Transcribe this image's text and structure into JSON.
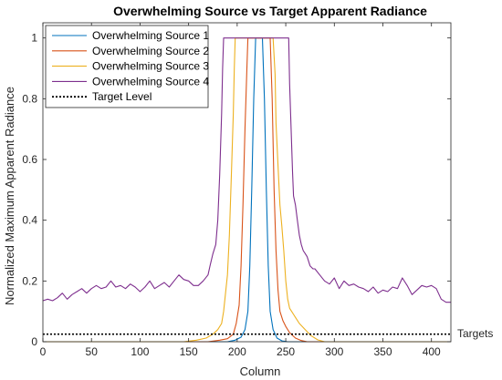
{
  "chart_data": {
    "type": "line",
    "title": "Overwhelming Source vs Target Apparent Radiance",
    "xlabel": "Column",
    "ylabel": "Normalized Maximum Apparent Radiance",
    "xlim": [
      0,
      420
    ],
    "ylim": [
      0,
      1.05
    ],
    "xticks": [
      0,
      50,
      100,
      150,
      200,
      250,
      300,
      350,
      400
    ],
    "yticks": [
      0,
      0.2,
      0.4,
      0.6,
      0.8,
      1
    ],
    "ytick_labels": [
      "0",
      "0.2",
      "0.4",
      "0.6",
      "0.8",
      "1"
    ],
    "grid": false,
    "legend_position": "top-left",
    "annotation": "Targets",
    "series": [
      {
        "name": "Overwhelming Source 1",
        "color": "#0072BD",
        "dash": "",
        "points": [
          [
            0,
            0
          ],
          [
            190,
            0
          ],
          [
            198,
            0.005
          ],
          [
            204,
            0.015
          ],
          [
            208,
            0.04
          ],
          [
            211,
            0.1
          ],
          [
            213,
            0.25
          ],
          [
            215,
            0.5
          ],
          [
            217,
            0.8
          ],
          [
            219,
            1
          ],
          [
            226,
            1
          ],
          [
            228,
            0.8
          ],
          [
            230,
            0.5
          ],
          [
            232,
            0.25
          ],
          [
            234,
            0.1
          ],
          [
            237,
            0.04
          ],
          [
            241,
            0.012
          ],
          [
            246,
            0.003
          ],
          [
            252,
            0
          ],
          [
            420,
            0
          ]
        ]
      },
      {
        "name": "Overwhelming Source 2",
        "color": "#D95319",
        "dash": "",
        "points": [
          [
            0,
            0
          ],
          [
            170,
            0
          ],
          [
            182,
            0.005
          ],
          [
            190,
            0.01
          ],
          [
            196,
            0.025
          ],
          [
            199,
            0.06
          ],
          [
            202,
            0.12
          ],
          [
            204,
            0.25
          ],
          [
            206,
            0.45
          ],
          [
            208,
            0.7
          ],
          [
            210,
            0.9
          ],
          [
            211,
            1
          ],
          [
            234,
            1
          ],
          [
            236,
            0.8
          ],
          [
            238,
            0.5
          ],
          [
            240,
            0.3
          ],
          [
            242,
            0.17
          ],
          [
            244,
            0.1
          ],
          [
            247,
            0.07
          ],
          [
            250,
            0.05
          ],
          [
            254,
            0.03
          ],
          [
            260,
            0.012
          ],
          [
            266,
            0.004
          ],
          [
            272,
            0
          ],
          [
            420,
            0
          ]
        ]
      },
      {
        "name": "Overwhelming Source 3",
        "color": "#EDB120",
        "dash": "",
        "points": [
          [
            0,
            0
          ],
          [
            145,
            0
          ],
          [
            158,
            0.005
          ],
          [
            168,
            0.012
          ],
          [
            175,
            0.025
          ],
          [
            180,
            0.04
          ],
          [
            184,
            0.06
          ],
          [
            186,
            0.1
          ],
          [
            188,
            0.16
          ],
          [
            190,
            0.22
          ],
          [
            192,
            0.35
          ],
          [
            194,
            0.55
          ],
          [
            196,
            0.75
          ],
          [
            197,
            0.9
          ],
          [
            198,
            1
          ],
          [
            237,
            1
          ],
          [
            239,
            0.88
          ],
          [
            240,
            0.72
          ],
          [
            242,
            0.58
          ],
          [
            244,
            0.45
          ],
          [
            246,
            0.38
          ],
          [
            248,
            0.3
          ],
          [
            250,
            0.2
          ],
          [
            252,
            0.14
          ],
          [
            254,
            0.11
          ],
          [
            256,
            0.1
          ],
          [
            258,
            0.09
          ],
          [
            260,
            0.08
          ],
          [
            264,
            0.06
          ],
          [
            270,
            0.04
          ],
          [
            276,
            0.02
          ],
          [
            283,
            0.006
          ],
          [
            290,
            0
          ],
          [
            420,
            0
          ]
        ]
      },
      {
        "name": "Overwhelming Source 4",
        "color": "#7E2F8E",
        "dash": "",
        "points": [
          [
            0,
            0.135
          ],
          [
            5,
            0.14
          ],
          [
            10,
            0.135
          ],
          [
            15,
            0.145
          ],
          [
            20,
            0.16
          ],
          [
            25,
            0.14
          ],
          [
            30,
            0.155
          ],
          [
            35,
            0.165
          ],
          [
            40,
            0.175
          ],
          [
            45,
            0.16
          ],
          [
            50,
            0.175
          ],
          [
            55,
            0.185
          ],
          [
            60,
            0.175
          ],
          [
            65,
            0.18
          ],
          [
            70,
            0.2
          ],
          [
            75,
            0.18
          ],
          [
            80,
            0.185
          ],
          [
            85,
            0.175
          ],
          [
            90,
            0.19
          ],
          [
            95,
            0.18
          ],
          [
            100,
            0.165
          ],
          [
            105,
            0.18
          ],
          [
            110,
            0.2
          ],
          [
            115,
            0.175
          ],
          [
            120,
            0.185
          ],
          [
            125,
            0.195
          ],
          [
            130,
            0.18
          ],
          [
            135,
            0.2
          ],
          [
            140,
            0.22
          ],
          [
            145,
            0.205
          ],
          [
            150,
            0.2
          ],
          [
            155,
            0.185
          ],
          [
            160,
            0.185
          ],
          [
            165,
            0.2
          ],
          [
            170,
            0.22
          ],
          [
            172,
            0.25
          ],
          [
            175,
            0.29
          ],
          [
            178,
            0.32
          ],
          [
            180,
            0.4
          ],
          [
            182,
            0.55
          ],
          [
            184,
            0.75
          ],
          [
            185,
            0.9
          ],
          [
            186,
            1
          ],
          [
            253,
            1
          ],
          [
            254,
            0.85
          ],
          [
            255,
            0.75
          ],
          [
            256,
            0.65
          ],
          [
            257,
            0.56
          ],
          [
            258,
            0.48
          ],
          [
            260,
            0.45
          ],
          [
            262,
            0.4
          ],
          [
            264,
            0.35
          ],
          [
            266,
            0.32
          ],
          [
            268,
            0.3
          ],
          [
            270,
            0.29
          ],
          [
            272,
            0.28
          ],
          [
            275,
            0.25
          ],
          [
            278,
            0.24
          ],
          [
            280,
            0.24
          ],
          [
            285,
            0.22
          ],
          [
            290,
            0.2
          ],
          [
            295,
            0.19
          ],
          [
            300,
            0.21
          ],
          [
            305,
            0.175
          ],
          [
            310,
            0.2
          ],
          [
            315,
            0.185
          ],
          [
            320,
            0.19
          ],
          [
            325,
            0.18
          ],
          [
            330,
            0.175
          ],
          [
            335,
            0.165
          ],
          [
            340,
            0.18
          ],
          [
            345,
            0.16
          ],
          [
            350,
            0.17
          ],
          [
            355,
            0.165
          ],
          [
            360,
            0.18
          ],
          [
            365,
            0.175
          ],
          [
            370,
            0.21
          ],
          [
            375,
            0.185
          ],
          [
            380,
            0.155
          ],
          [
            385,
            0.17
          ],
          [
            390,
            0.185
          ],
          [
            395,
            0.18
          ],
          [
            400,
            0.185
          ],
          [
            405,
            0.175
          ],
          [
            410,
            0.14
          ],
          [
            415,
            0.13
          ],
          [
            420,
            0.13
          ]
        ]
      },
      {
        "name": "Target Level",
        "color": "#000000",
        "dash": "2,2",
        "points": [
          [
            0,
            0.025
          ],
          [
            420,
            0.025
          ]
        ]
      }
    ]
  }
}
